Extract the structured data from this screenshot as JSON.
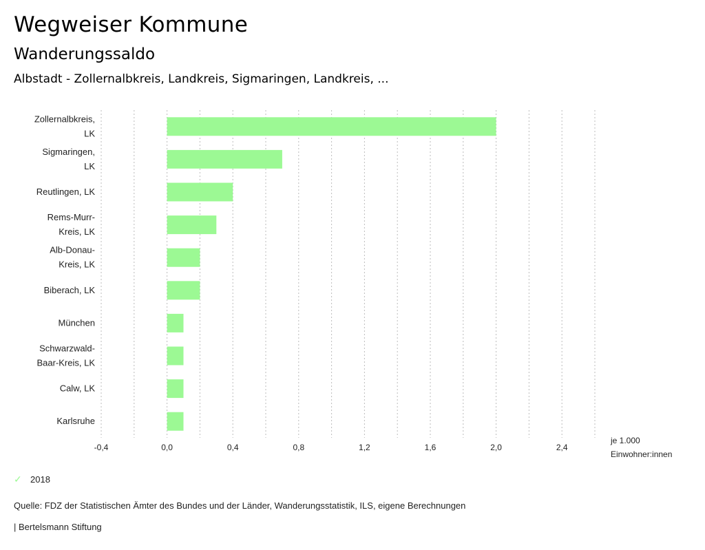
{
  "header": {
    "title": "Wegweiser Kommune",
    "subtitle": "Wanderungssaldo",
    "region": "Albstadt - Zollernalbkreis, Landkreis, Sigmaringen, Landkreis, ..."
  },
  "colors": {
    "bar": "#9cf994",
    "grid": "#bbbbbb"
  },
  "chart_data": {
    "type": "bar",
    "orientation": "horizontal",
    "title": "Wanderungssaldo",
    "xlabel": "je 1.000 Einwohner:innen",
    "ylabel": "",
    "categories": [
      [
        "Zollernalbkreis,",
        "LK"
      ],
      [
        "Sigmaringen,",
        "LK"
      ],
      [
        "Reutlingen, LK"
      ],
      [
        "Rems-Murr-",
        "Kreis, LK"
      ],
      [
        "Alb-Donau-",
        "Kreis, LK"
      ],
      [
        "Biberach, LK"
      ],
      [
        "München"
      ],
      [
        "Schwarzwald-",
        "Baar-Kreis, LK"
      ],
      [
        "Calw, LK"
      ],
      [
        "Karlsruhe"
      ]
    ],
    "series": [
      {
        "name": "2018",
        "values": [
          2.0,
          0.7,
          0.4,
          0.3,
          0.2,
          0.2,
          0.1,
          0.1,
          0.1,
          0.1
        ]
      }
    ],
    "xlim": [
      -0.4,
      2.6
    ],
    "ticks": [
      -0.4,
      0.0,
      0.4,
      0.8,
      1.2,
      1.6,
      2.0,
      2.4
    ],
    "tick_labels": [
      "-0,4",
      "0,0",
      "0,4",
      "0,8",
      "1,2",
      "1,6",
      "2,0",
      "2,4"
    ],
    "gridlines": [
      -0.4,
      -0.2,
      0.0,
      0.2,
      0.4,
      0.6,
      0.8,
      1.0,
      1.2,
      1.4,
      1.6,
      1.8,
      2.0,
      2.2,
      2.4,
      2.6
    ],
    "grid": true,
    "legend": {
      "position": "bottom-left",
      "entries": [
        "2018"
      ]
    }
  },
  "axis_unit": {
    "line1": "je 1.000",
    "line2": "Einwohner:innen"
  },
  "legend": {
    "label": "2018",
    "icon": "check-icon"
  },
  "footer": {
    "source": "Quelle: FDZ der Statistischen Ämter des Bundes und der Länder, Wanderungsstatistik, ILS, eigene Berechnungen",
    "brand": "| Bertelsmann Stiftung"
  }
}
